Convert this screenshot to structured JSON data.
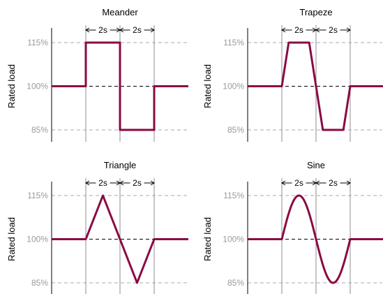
{
  "colors": {
    "signal": "#8a0a43",
    "grid_dashed": "#a8a8a8",
    "mid_dashed": "#000000",
    "vline": "#8c8c8c",
    "tick_text": "#9a9a9a",
    "axis": "#000000"
  },
  "chart_data": [
    {
      "type": "line",
      "title": "Meander",
      "ylabel": "Rated load",
      "yticks": [
        "115%",
        "100%",
        "85%"
      ],
      "ylim": [
        85,
        115
      ],
      "xlim": [
        -2,
        6
      ],
      "duration_marks": [
        "2s",
        "2s"
      ],
      "marker_x": [
        0,
        2,
        4
      ],
      "series": [
        {
          "shape": "meander",
          "x": [
            -2,
            0,
            0,
            2,
            2,
            4,
            4,
            6
          ],
          "y": [
            100,
            100,
            115,
            115,
            85,
            85,
            100,
            100
          ]
        }
      ]
    },
    {
      "type": "line",
      "title": "Trapeze",
      "ylabel": "Rated load",
      "yticks": [
        "115%",
        "100%",
        "85%"
      ],
      "ylim": [
        85,
        115
      ],
      "xlim": [
        -2,
        6
      ],
      "duration_marks": [
        "2s",
        "2s"
      ],
      "marker_x": [
        0,
        2,
        4
      ],
      "series": [
        {
          "shape": "trapeze",
          "x": [
            -2,
            0,
            0.4,
            1.6,
            2.4,
            3.6,
            4,
            6
          ],
          "y": [
            100,
            100,
            115,
            115,
            85,
            85,
            100,
            100
          ]
        }
      ]
    },
    {
      "type": "line",
      "title": "Triangle",
      "ylabel": "Rated load",
      "yticks": [
        "115%",
        "100%",
        "85%"
      ],
      "ylim": [
        85,
        115
      ],
      "xlim": [
        -2,
        6
      ],
      "duration_marks": [
        "2s",
        "2s"
      ],
      "marker_x": [
        0,
        2,
        4
      ],
      "series": [
        {
          "shape": "triangle",
          "x": [
            -2,
            0,
            1,
            2,
            3,
            4,
            6
          ],
          "y": [
            100,
            100,
            115,
            100,
            85,
            100,
            100
          ]
        }
      ]
    },
    {
      "type": "line",
      "title": "Sine",
      "ylabel": "Rated load",
      "yticks": [
        "115%",
        "100%",
        "85%"
      ],
      "ylim": [
        85,
        115
      ],
      "xlim": [
        -2,
        6
      ],
      "duration_marks": [
        "2s",
        "2s"
      ],
      "marker_x": [
        0,
        2,
        4
      ],
      "series": [
        {
          "shape": "sine",
          "x": [
            -2,
            0,
            1,
            2,
            3,
            4,
            6
          ],
          "y": [
            100,
            100,
            115,
            100,
            85,
            100,
            100
          ]
        }
      ]
    }
  ]
}
